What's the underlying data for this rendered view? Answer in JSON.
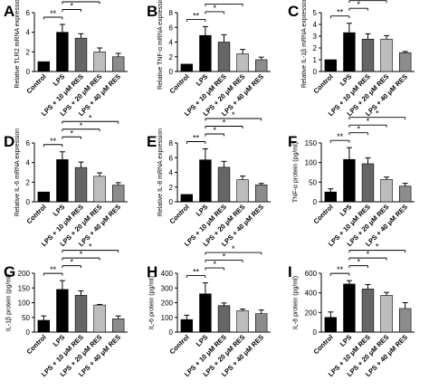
{
  "colors": {
    "Control": "#000000",
    "LPS": "#000000",
    "LPS10": "#666666",
    "LPS20": "#bdbdbd",
    "LPS40": "#8c8c8c"
  },
  "chart_data": [
    {
      "type": "bar",
      "panel": "A",
      "categories": [
        "Control",
        "LPS",
        "LPS + 10 μM RES",
        "LPS + 20 μM RES",
        "LPS + 40 μM RES"
      ],
      "values": [
        1.0,
        4.0,
        3.4,
        2.0,
        1.5
      ],
      "errors": [
        0,
        0.8,
        0.45,
        0.4,
        0.35
      ],
      "ylabel": "Relative TLR2 mRNA expression",
      "ylim": [
        0,
        6
      ],
      "yticks": [
        0,
        2,
        4,
        6
      ],
      "significance": [
        {
          "from": 0,
          "to": 1,
          "label": "**"
        },
        {
          "from": 1,
          "to": 2,
          "label": "*"
        },
        {
          "from": 1,
          "to": 3,
          "label": "*"
        },
        {
          "from": 1,
          "to": 4,
          "label": "*"
        }
      ]
    },
    {
      "type": "bar",
      "panel": "B",
      "categories": [
        "Control",
        "LPS",
        "LPS + 10 μM RES",
        "LPS + 20 μM RES",
        "LPS + 40 μM RES"
      ],
      "values": [
        1.0,
        4.9,
        4.0,
        2.4,
        1.6
      ],
      "errors": [
        0,
        1.2,
        1.0,
        0.6,
        0.35
      ],
      "ylabel": "Relative TNF-α mRNA expression",
      "ylim": [
        0,
        8
      ],
      "yticks": [
        0,
        2,
        4,
        6,
        8
      ],
      "significance": [
        {
          "from": 0,
          "to": 1,
          "label": "**"
        },
        {
          "from": 1,
          "to": 2,
          "label": "*"
        },
        {
          "from": 1,
          "to": 3,
          "label": "*"
        },
        {
          "from": 1,
          "to": 4,
          "label": "*"
        }
      ]
    },
    {
      "type": "bar",
      "panel": "C",
      "categories": [
        "Control",
        "LPS",
        "LPS + 10 μM RES",
        "LPS + 20 μM RES",
        "LPS + 40 μM RES"
      ],
      "values": [
        1.0,
        3.3,
        2.75,
        2.75,
        1.6
      ],
      "errors": [
        0,
        0.8,
        0.45,
        0.3,
        0.1
      ],
      "ylabel": "Relative IL-1β mRNA expression",
      "ylim": [
        0,
        5
      ],
      "yticks": [
        0,
        1,
        2,
        3,
        4,
        5
      ],
      "significance": [
        {
          "from": 0,
          "to": 1,
          "label": "**"
        },
        {
          "from": 1,
          "to": 2,
          "label": "*"
        },
        {
          "from": 1,
          "to": 3,
          "label": "*"
        },
        {
          "from": 1,
          "to": 4,
          "label": "**"
        }
      ]
    },
    {
      "type": "bar",
      "panel": "D",
      "categories": [
        "Control",
        "LPS",
        "LPS + 10 μM RES",
        "LPS + 20 μM RES",
        "LPS + 40 μM RES"
      ],
      "values": [
        1.0,
        4.3,
        3.5,
        2.6,
        1.7
      ],
      "errors": [
        0,
        0.8,
        0.55,
        0.35,
        0.25
      ],
      "ylabel": "Relative IL-6 mRNA expression",
      "ylim": [
        0,
        6
      ],
      "yticks": [
        0,
        2,
        4,
        6
      ],
      "significance": [
        {
          "from": 0,
          "to": 1,
          "label": "**"
        },
        {
          "from": 1,
          "to": 2,
          "label": "*"
        },
        {
          "from": 1,
          "to": 3,
          "label": "*"
        },
        {
          "from": 1,
          "to": 4,
          "label": "*"
        }
      ]
    },
    {
      "type": "bar",
      "panel": "E",
      "categories": [
        "Control",
        "LPS",
        "LPS + 10 μM RES",
        "LPS + 20 μM RES",
        "LPS + 40 μM RES"
      ],
      "values": [
        1.0,
        5.7,
        4.7,
        3.0,
        2.3
      ],
      "errors": [
        0,
        1.5,
        0.8,
        0.5,
        0.2
      ],
      "ylabel": "Relative IL-8 mRNA expression",
      "ylim": [
        0,
        8
      ],
      "yticks": [
        0,
        2,
        4,
        6,
        8
      ],
      "significance": [
        {
          "from": 0,
          "to": 1,
          "label": "**"
        },
        {
          "from": 1,
          "to": 2,
          "label": "*"
        },
        {
          "from": 1,
          "to": 3,
          "label": "*"
        },
        {
          "from": 1,
          "to": 4,
          "label": "*"
        }
      ]
    },
    {
      "type": "bar",
      "panel": "F",
      "categories": [
        "Control",
        "LPS",
        "LPS + 10 μM RES",
        "LPS + 20 μM RES",
        "LPS + 40 μM RES"
      ],
      "values": [
        25,
        108,
        97,
        57,
        40
      ],
      "errors": [
        8,
        30,
        15,
        6,
        7
      ],
      "ylabel": "TNF-α protein (pg/ml)",
      "ylim": [
        0,
        150
      ],
      "yticks": [
        0,
        50,
        100,
        150
      ],
      "significance": [
        {
          "from": 0,
          "to": 1,
          "label": "**"
        },
        {
          "from": 1,
          "to": 2,
          "label": "*"
        },
        {
          "from": 1,
          "to": 3,
          "label": "*"
        },
        {
          "from": 1,
          "to": 4,
          "label": "*"
        }
      ]
    },
    {
      "type": "bar",
      "panel": "G",
      "categories": [
        "Control",
        "LPS",
        "LPS + 10 μM RES",
        "LPS + 20 μM RES",
        "LPS + 40 μM RES"
      ],
      "values": [
        40,
        145,
        125,
        92,
        45
      ],
      "errors": [
        15,
        30,
        15,
        2,
        10
      ],
      "ylabel": "IL-1β protein (pg/ml)",
      "ylim": [
        0,
        200
      ],
      "yticks": [
        0,
        50,
        100,
        150,
        200
      ],
      "significance": [
        {
          "from": 0,
          "to": 1,
          "label": "**"
        },
        {
          "from": 1,
          "to": 2,
          "label": "*"
        },
        {
          "from": 1,
          "to": 3,
          "label": "*"
        },
        {
          "from": 1,
          "to": 4,
          "label": "*"
        }
      ]
    },
    {
      "type": "bar",
      "panel": "H",
      "categories": [
        "Control",
        "LPS",
        "LPS + 10 μM RES",
        "LPS + 20 μM RES",
        "LPS + 40 μM RES"
      ],
      "values": [
        85,
        260,
        180,
        145,
        125
      ],
      "errors": [
        30,
        75,
        18,
        12,
        25
      ],
      "ylabel": "IL-6 protein (pg/ml)",
      "ylim": [
        0,
        400
      ],
      "yticks": [
        0,
        100,
        200,
        300,
        400
      ],
      "significance": [
        {
          "from": 0,
          "to": 1,
          "label": "**"
        },
        {
          "from": 1,
          "to": 2,
          "label": "*"
        },
        {
          "from": 1,
          "to": 3,
          "label": "*"
        },
        {
          "from": 1,
          "to": 4,
          "label": "*"
        }
      ]
    },
    {
      "type": "bar",
      "panel": "I",
      "categories": [
        "Control",
        "LPS",
        "LPS + 10 μM RES",
        "LPS + 20 μM RES",
        "LPS + 40 μM RES"
      ],
      "values": [
        150,
        490,
        440,
        375,
        240
      ],
      "errors": [
        55,
        35,
        45,
        30,
        60
      ],
      "ylabel": "IL-8 protein (pg/ml)",
      "ylim": [
        0,
        600
      ],
      "yticks": [
        0,
        200,
        400,
        600
      ],
      "significance": [
        {
          "from": 0,
          "to": 1,
          "label": "**"
        },
        {
          "from": 1,
          "to": 2,
          "label": "*"
        },
        {
          "from": 1,
          "to": 3,
          "label": "*"
        },
        {
          "from": 1,
          "to": 4,
          "label": "*"
        }
      ]
    }
  ]
}
